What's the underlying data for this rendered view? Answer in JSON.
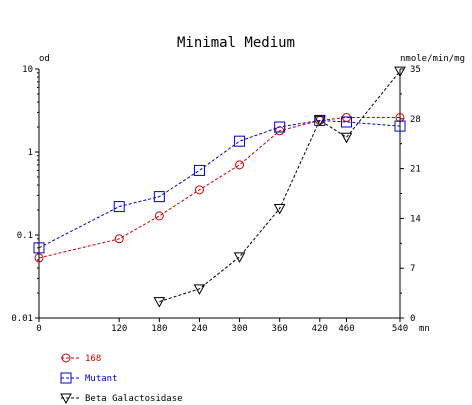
{
  "chart_data": {
    "type": "line",
    "title": "Minimal Medium",
    "x_unit": "mn",
    "x_ticks": [
      0,
      120,
      180,
      240,
      300,
      360,
      420,
      460,
      540
    ],
    "xlim": [
      0,
      540
    ],
    "y_left": {
      "label": "od",
      "scale": "log",
      "ylim": [
        0.01,
        10
      ],
      "ticks": [
        0.01,
        0.1,
        1,
        10
      ],
      "tick_labels": [
        "0.01",
        "0.1",
        "1",
        "10"
      ]
    },
    "y_right": {
      "label": "nmole/min/mg",
      "scale": "linear",
      "ylim": [
        0,
        35
      ],
      "ticks": [
        0,
        7,
        14,
        21,
        28,
        35
      ],
      "tick_labels": [
        "0",
        "7",
        "14",
        "21",
        "28",
        "35"
      ]
    },
    "grid": false,
    "legend_position": "bottom-left",
    "series": [
      {
        "name": "168",
        "axis": "left",
        "color": "#cc0000",
        "marker": "circle",
        "x": [
          0,
          120,
          180,
          240,
          300,
          360,
          420,
          460,
          540
        ],
        "y": [
          0.053,
          0.09,
          0.17,
          0.35,
          0.7,
          1.8,
          2.4,
          2.6,
          2.6
        ]
      },
      {
        "name": "Mutant",
        "axis": "left",
        "color": "#0000cc",
        "marker": "square",
        "x": [
          0,
          120,
          180,
          240,
          300,
          360,
          420,
          460,
          540
        ],
        "y": [
          0.07,
          0.22,
          0.29,
          0.6,
          1.35,
          2.0,
          2.4,
          2.3,
          2.05
        ]
      },
      {
        "name": "Beta Galactosidase",
        "axis": "right",
        "color": "#000000",
        "marker": "triangle-down",
        "x": [
          180,
          240,
          300,
          360,
          420,
          460,
          540
        ],
        "y": [
          2.3,
          4.1,
          8.6,
          15.4,
          27.8,
          25.4,
          34.7
        ]
      }
    ]
  }
}
